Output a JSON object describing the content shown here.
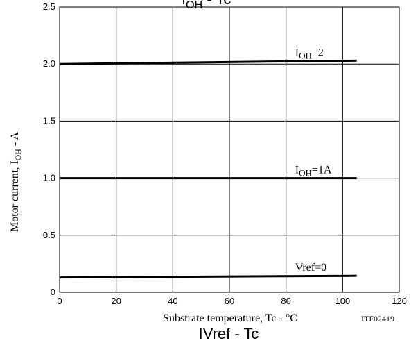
{
  "chart_data": {
    "type": "line",
    "title": "I",
    "title_subscript": "OH",
    "title_suffix": " - Tc",
    "caption": "IVref - Tc",
    "xlabel": "Substrate temperature, Tc - °C",
    "ylabel": "Motor current, I",
    "ylabel_subscript": "OH",
    "ylabel_suffix": " - A",
    "figure_id": "ITF02419",
    "xlim": [
      0,
      120
    ],
    "ylim": [
      0,
      2.5
    ],
    "x_ticks": [
      0,
      20,
      40,
      60,
      80,
      100,
      120
    ],
    "x_tick_labels": [
      "0",
      "20",
      "40",
      "60",
      "80",
      "100",
      "120"
    ],
    "y_ticks": [
      0,
      0.5,
      1.0,
      1.5,
      2.0,
      2.5
    ],
    "y_tick_labels": [
      "0",
      "0.5",
      "1.0",
      "1.5",
      "2.0",
      "2.5"
    ],
    "grid": true,
    "series": [
      {
        "label_main": "I",
        "label_sub": "OH",
        "label_suffix": "=2",
        "x": [
          0,
          105
        ],
        "y": [
          2.0,
          2.03
        ]
      },
      {
        "label_main": "I",
        "label_sub": "OH",
        "label_suffix": "=1A",
        "x": [
          0,
          105
        ],
        "y": [
          1.0,
          1.0
        ]
      },
      {
        "label_main": "Vref=0",
        "label_sub": "",
        "label_suffix": "",
        "x": [
          0,
          105
        ],
        "y": [
          0.13,
          0.145
        ]
      }
    ]
  }
}
